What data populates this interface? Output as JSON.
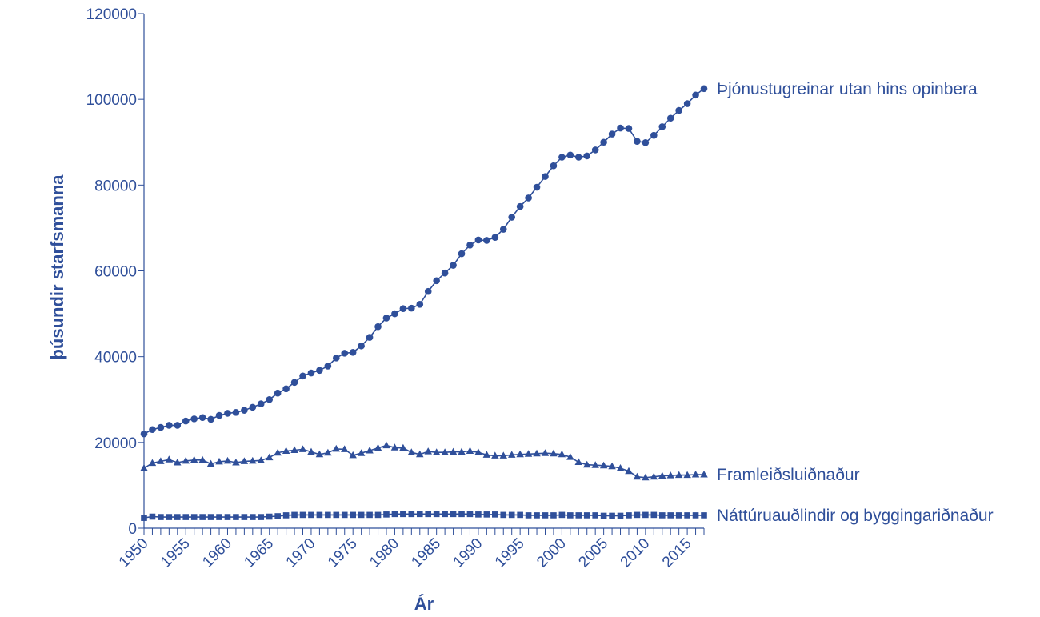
{
  "chart_data": {
    "type": "line",
    "title": "",
    "xlabel": "Ár",
    "ylabel": "þúsundir starfsmanna",
    "xlim": [
      1950,
      2017
    ],
    "ylim": [
      0,
      120000
    ],
    "x_ticks": [
      "1950",
      "1955",
      "1960",
      "1965",
      "1970",
      "1975",
      "1980",
      "1985",
      "1990",
      "1995",
      "2000",
      "2005",
      "2010",
      "2015"
    ],
    "y_ticks": [
      "0",
      "20000",
      "40000",
      "60000",
      "80000",
      "100000",
      "120000"
    ],
    "color": "#2f4f9a",
    "grid": false,
    "x": [
      1950,
      1951,
      1952,
      1953,
      1954,
      1955,
      1956,
      1957,
      1958,
      1959,
      1960,
      1961,
      1962,
      1963,
      1964,
      1965,
      1966,
      1967,
      1968,
      1969,
      1970,
      1971,
      1972,
      1973,
      1974,
      1975,
      1976,
      1977,
      1978,
      1979,
      1980,
      1981,
      1982,
      1983,
      1984,
      1985,
      1986,
      1987,
      1988,
      1989,
      1990,
      1991,
      1992,
      1993,
      1994,
      1995,
      1996,
      1997,
      1998,
      1999,
      2000,
      2001,
      2002,
      2003,
      2004,
      2005,
      2006,
      2007,
      2008,
      2009,
      2010,
      2011,
      2012,
      2013,
      2014,
      2015,
      2016,
      2017
    ],
    "series": [
      {
        "name": "Þjónustugreinar utan hins opinbera",
        "marker": "circle",
        "values": [
          22000,
          23000,
          23500,
          24000,
          24000,
          25000,
          25500,
          25800,
          25400,
          26300,
          26800,
          27000,
          27500,
          28200,
          29000,
          30000,
          31500,
          32500,
          34000,
          35500,
          36200,
          36800,
          37800,
          39700,
          40800,
          41000,
          42500,
          44500,
          47000,
          49000,
          50000,
          51200,
          51300,
          52200,
          55200,
          57700,
          59500,
          61300,
          64000,
          66000,
          67200,
          67100,
          67800,
          69700,
          72500,
          75000,
          77000,
          79500,
          82000,
          84500,
          86500,
          87000,
          86500,
          86800,
          88200,
          90000,
          91900,
          93300,
          93200,
          90200,
          89900,
          91600,
          93600,
          95600,
          97400,
          99000,
          101000,
          102500
        ]
      },
      {
        "name": "Framleiðsluiðnaður",
        "marker": "triangle",
        "values": [
          14000,
          15200,
          15600,
          16000,
          15300,
          15700,
          15900,
          15900,
          15000,
          15500,
          15700,
          15300,
          15600,
          15700,
          15800,
          16500,
          17600,
          18000,
          18200,
          18400,
          17800,
          17200,
          17600,
          18500,
          18400,
          17000,
          17500,
          18100,
          18700,
          19300,
          18800,
          18700,
          17700,
          17200,
          17900,
          17700,
          17700,
          17800,
          17800,
          18000,
          17700,
          17100,
          16900,
          16900,
          17100,
          17200,
          17300,
          17400,
          17500,
          17400,
          17200,
          16600,
          15400,
          14800,
          14700,
          14600,
          14400,
          14000,
          13300,
          12000,
          11800,
          12000,
          12200,
          12300,
          12400,
          12400,
          12500,
          12500
        ]
      },
      {
        "name": "Náttúruauðlindir og byggingariðnaður",
        "marker": "square",
        "values": [
          2400,
          2700,
          2600,
          2600,
          2600,
          2600,
          2600,
          2600,
          2600,
          2600,
          2600,
          2600,
          2600,
          2600,
          2600,
          2700,
          2800,
          3000,
          3100,
          3100,
          3100,
          3100,
          3100,
          3100,
          3100,
          3100,
          3100,
          3100,
          3100,
          3200,
          3300,
          3300,
          3300,
          3300,
          3300,
          3300,
          3300,
          3300,
          3300,
          3300,
          3200,
          3200,
          3200,
          3100,
          3100,
          3100,
          3000,
          3000,
          3000,
          3000,
          3100,
          3000,
          3000,
          3000,
          3000,
          2900,
          2900,
          2900,
          3000,
          3100,
          3100,
          3100,
          3000,
          3000,
          3000,
          3000,
          3000,
          3000
        ]
      }
    ]
  }
}
